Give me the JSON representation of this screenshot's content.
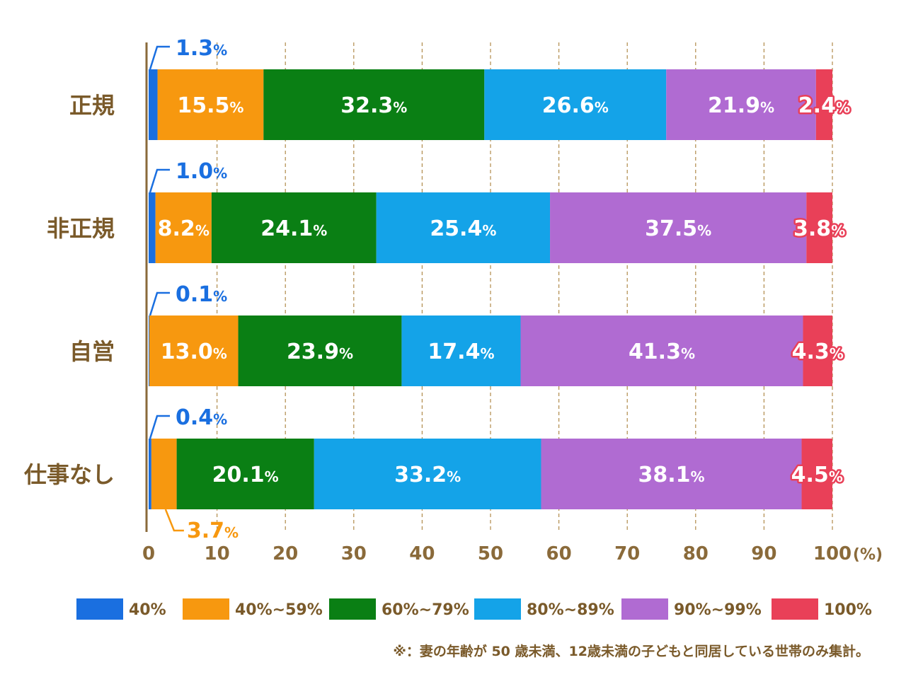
{
  "chart_data": {
    "type": "bar",
    "orientation": "horizontal",
    "stacked": true,
    "categories": [
      "正規",
      "非正規",
      "自営",
      "仕事なし"
    ],
    "series": [
      {
        "name": "40%",
        "color": "#1a6fe0",
        "values": [
          1.3,
          1.0,
          0.1,
          0.4
        ]
      },
      {
        "name": "40%~59%",
        "color": "#f7980f",
        "values": [
          15.5,
          8.2,
          13.0,
          3.7
        ]
      },
      {
        "name": "60%~79%",
        "color": "#0a7f14",
        "values": [
          32.3,
          24.1,
          23.9,
          20.1
        ]
      },
      {
        "name": "80%~89%",
        "color": "#14a3e8",
        "values": [
          26.6,
          25.4,
          17.4,
          33.2
        ]
      },
      {
        "name": "90%~99%",
        "color": "#b06bd2",
        "values": [
          21.9,
          37.5,
          41.3,
          38.1
        ]
      },
      {
        "name": "100%",
        "color": "#e94058",
        "values": [
          2.4,
          3.8,
          4.3,
          4.5
        ]
      }
    ],
    "x_ticks": [
      "0",
      "10",
      "20",
      "30",
      "40",
      "50",
      "60",
      "70",
      "80",
      "90",
      "100"
    ],
    "xlim": [
      0,
      100
    ],
    "x_unit": "(%)",
    "value_suffix": "%",
    "grid": "vertical dashed",
    "legend_position": "bottom"
  },
  "footnote": "※：妻の年齢が 50 歳未満、12歳未満の子どもと同居している世帯のみ集計。",
  "colors": {
    "axis": "#8a6a3a",
    "text": "#7a5a2a"
  }
}
